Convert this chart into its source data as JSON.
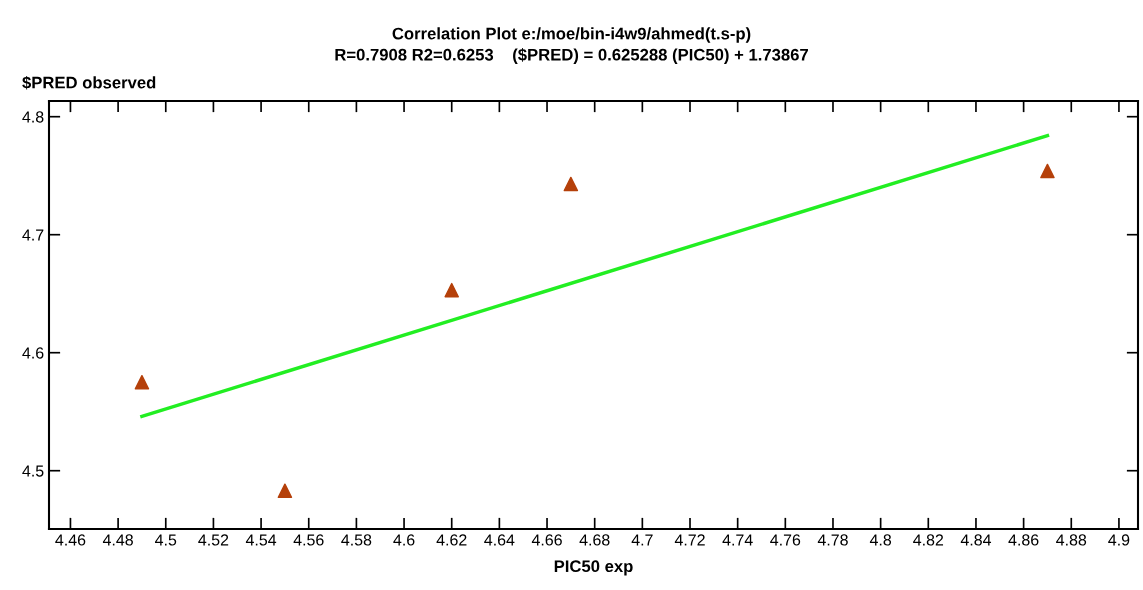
{
  "chart_data": {
    "type": "scatter",
    "title": "Correlation Plot e:/moe/bin-i4w9/ahmed(t.s-p)",
    "subtitle": "R=0.7908 R2=0.6253    ($PRED) = 0.625288 (PIC50) + 1.73867",
    "xlabel": "PIC50 exp",
    "ylabel": "$PRED observed",
    "series": [
      {
        "color": "#b5400a",
        "marker": "triangle",
        "x": [
          4.49,
          4.55,
          4.62,
          4.67,
          4.87
        ],
        "values": [
          4.575,
          4.483,
          4.653,
          4.743,
          4.754
        ]
      },
      {
        "type": "line",
        "color": "#22ee22",
        "marker": "none",
        "line_style": "solid",
        "x": [
          4.49,
          4.87
        ],
        "values": [
          4.546,
          4.784
        ]
      }
    ],
    "xlim": [
      4.451,
      4.908
    ],
    "ylim": [
      4.4506,
      4.8133
    ],
    "xticks": [
      4.46,
      4.48,
      4.5,
      4.52,
      4.54,
      4.56,
      4.58,
      4.6,
      4.62,
      4.64,
      4.66,
      4.68,
      4.7,
      4.72,
      4.74,
      4.76,
      4.78,
      4.8,
      4.82,
      4.84,
      4.86,
      4.88,
      4.9
    ],
    "yticks": [
      4.5,
      4.6,
      4.7,
      4.8
    ],
    "grid": false,
    "legend": false
  }
}
